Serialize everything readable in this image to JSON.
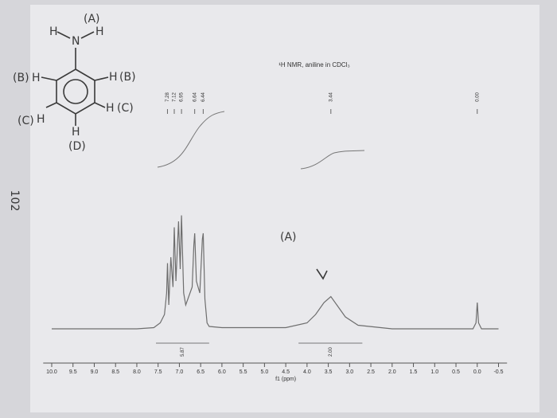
{
  "chart_data": {
    "type": "line",
    "title": "¹H NMR, aniline in CDCl₃",
    "xlabel": "f1 (ppm)",
    "x": [
      10.0,
      8.0,
      7.6,
      7.45,
      7.35,
      7.3,
      7.28,
      7.25,
      7.2,
      7.15,
      7.12,
      7.08,
      7.02,
      6.98,
      6.95,
      6.9,
      6.85,
      6.8,
      6.7,
      6.66,
      6.64,
      6.6,
      6.52,
      6.46,
      6.44,
      6.4,
      6.35,
      6.3,
      6.0,
      4.5,
      4.0,
      3.8,
      3.6,
      3.44,
      3.3,
      3.1,
      2.8,
      2.0,
      0.1,
      0.03,
      0.0,
      -0.03,
      -0.1,
      -0.5
    ],
    "values": [
      0,
      0,
      1,
      5,
      12,
      30,
      55,
      20,
      60,
      35,
      85,
      40,
      90,
      50,
      95,
      30,
      20,
      25,
      35,
      70,
      80,
      40,
      30,
      75,
      80,
      25,
      5,
      2,
      1,
      1,
      5,
      12,
      22,
      27,
      20,
      10,
      3,
      0,
      0,
      5,
      22,
      5,
      0,
      0
    ],
    "color": "#6e6e6e",
    "xlim": [
      10.2,
      -0.7
    ],
    "ylim": [
      0,
      100
    ],
    "xticks": [
      {
        "value": 10,
        "label": "10.0"
      },
      9.5,
      {
        "value": 9,
        "label": "9.0"
      },
      8.5,
      {
        "value": 8,
        "label": "8.0"
      },
      7.5,
      {
        "value": 7,
        "label": "7.0"
      },
      6.5,
      {
        "value": 6,
        "label": "6.0"
      },
      5.5,
      {
        "value": 5,
        "label": "5.0"
      },
      4.5,
      {
        "value": 4,
        "label": "4.0"
      },
      3.5,
      {
        "value": 3,
        "label": "3.0"
      },
      2.5,
      {
        "value": 2,
        "label": "2.0"
      },
      1.5,
      {
        "value": 1,
        "label": "1.0"
      },
      0.5,
      {
        "value": 0,
        "label": "0.0"
      },
      -0.5
    ],
    "peak_labels": [
      7.28,
      7.12,
      6.95,
      6.64,
      6.44,
      3.44,
      {
        "value": 0,
        "label": "0.00"
      }
    ],
    "integrals": [
      {
        "from": 7.55,
        "to": 6.3,
        "value": 5.87
      },
      {
        "from": 4.2,
        "to": 2.7,
        "value": {
          "value": 2,
          "label": "2.00"
        }
      }
    ]
  },
  "annotations": [
    "(A)",
    "H",
    "N",
    "H",
    "(B)",
    "H",
    "H",
    "(B)",
    "(C)",
    "H",
    "H",
    "(C)",
    "H",
    "(D)",
    "(A)",
    "102"
  ]
}
